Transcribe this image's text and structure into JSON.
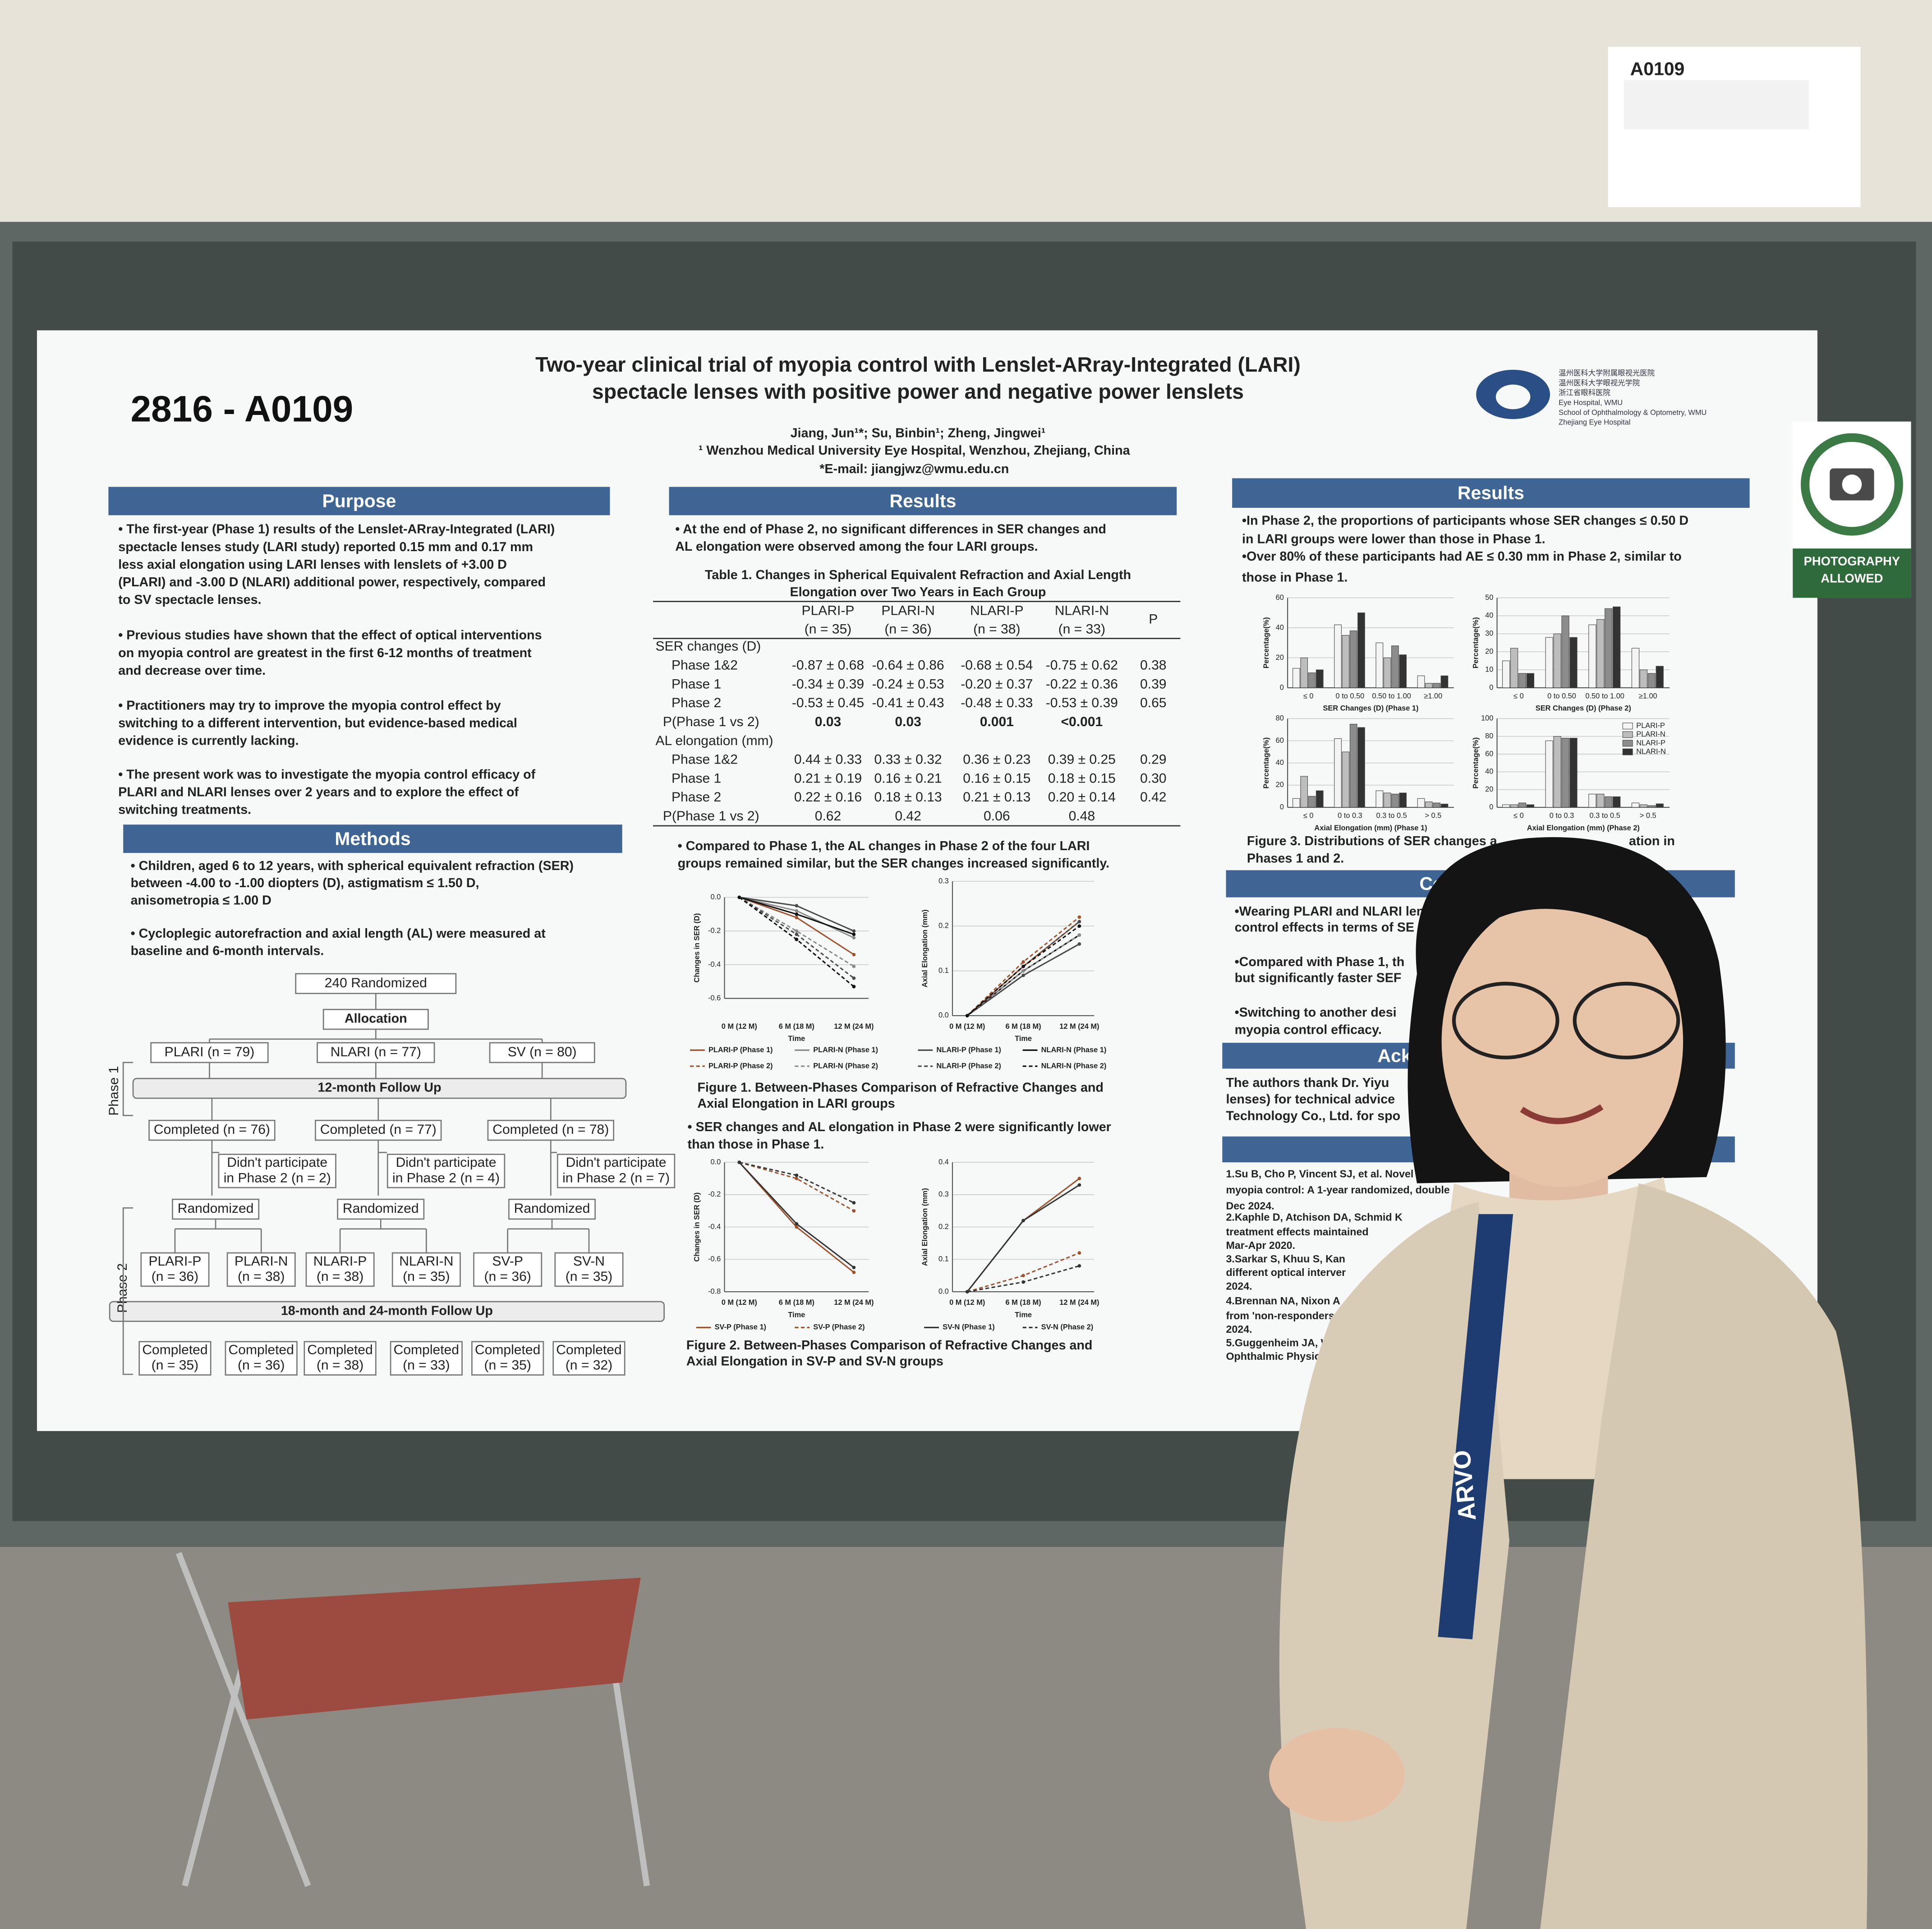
{
  "sign": {
    "code": "A0109"
  },
  "photo_sign": [
    "PHOTOGRAPHY",
    "ALLOWED"
  ],
  "poster": {
    "id": "2816 - A0109",
    "title": [
      "Two-year clinical trial of myopia control with Lenslet-ARray-Integrated (LARI)",
      "spectacle lenses with positive power and negative power lenslets"
    ],
    "authors": "Jiang, Jun¹*; Su, Binbin¹; Zheng, Jingwei¹",
    "affiliation": "¹ Wenzhou Medical University Eye Hospital, Wenzhou, Zhejiang, China",
    "email": "*E-mail: jiangjwz@wmu.edu.cn",
    "logo_text": [
      "温州医科大学附属眼视光医院",
      "温州医科大学眼视光学院",
      "浙江省眼科医院",
      "Eye Hospital, WMU",
      "School of Ophthalmology & Optometry, WMU",
      "Zhejiang Eye Hospital"
    ],
    "purpose": {
      "heading": "Purpose",
      "paragraphs": [
        [
          "• The first-year (Phase 1) results of the Lenslet-ARray-Integrated (LARI)",
          "spectacle lenses study (LARI study) reported 0.15 mm and 0.17 mm",
          "less axial elongation using LARI lenses with lenslets of +3.00 D",
          "(PLARI) and -3.00 D (NLARI) additional power, respectively, compared",
          "to SV spectacle lenses."
        ],
        [
          "• Previous studies have shown that the effect of optical interventions",
          "on myopia control are greatest in the first 6-12 months of treatment",
          "and decrease over time."
        ],
        [
          "• Practitioners may try to improve the myopia control effect by",
          "switching to a different intervention, but evidence-based medical",
          "evidence is currently lacking."
        ],
        [
          "• The present work was to investigate the myopia control efficacy of",
          "PLARI and NLARI lenses over 2 years and to explore the effect of",
          "switching treatments."
        ]
      ]
    },
    "methods": {
      "heading": "Methods",
      "paragraphs": [
        [
          "• Children, aged 6 to 12 years, with spherical equivalent refraction (SER)",
          "between -4.00 to -1.00 diopters (D), astigmatism ≤ 1.50 D,",
          "anisometropia ≤ 1.00 D"
        ],
        [
          "• Cycloplegic autorefraction and axial length (AL) were measured at",
          "baseline and 6-month intervals."
        ]
      ]
    },
    "flowchart": {
      "phases": [
        "Phase 1",
        "Phase 2"
      ],
      "nodes": [
        [
          "240 Randomized"
        ],
        [
          "Allocation"
        ],
        [
          "PLARI (n = 79)"
        ],
        [
          "NLARI (n = 77)"
        ],
        [
          "SV (n = 80)"
        ],
        [
          "12-month Follow Up"
        ],
        [
          "Completed (n = 76)"
        ],
        [
          "Completed (n = 77)"
        ],
        [
          "Completed (n = 78)"
        ],
        [
          "Didn't participate",
          "in Phase 2 (n = 2)"
        ],
        [
          "Didn't participate",
          "in Phase 2 (n = 4)"
        ],
        [
          "Didn't participate",
          "in Phase 2 (n = 7)"
        ],
        [
          "Randomized"
        ],
        [
          "Randomized"
        ],
        [
          "Randomized"
        ],
        [
          "PLARI-P",
          "(n = 36)"
        ],
        [
          "PLARI-N",
          "(n = 38)"
        ],
        [
          "NLARI-P",
          "(n = 38)"
        ],
        [
          "NLARI-N",
          "(n = 35)"
        ],
        [
          "SV-P",
          "(n = 36)"
        ],
        [
          "SV-N",
          "(n = 35)"
        ],
        [
          "18-month and 24-month Follow Up"
        ],
        [
          "Completed",
          "(n = 35)"
        ],
        [
          "Completed",
          "(n = 36)"
        ],
        [
          "Completed",
          "(n = 38)"
        ],
        [
          "Completed",
          "(n = 33)"
        ],
        [
          "Completed",
          "(n = 35)"
        ],
        [
          "Completed",
          "(n = 32)"
        ]
      ]
    },
    "results_mid": {
      "heading": "Results",
      "intro": [
        "• At the end of Phase 2, no significant differences in SER changes and",
        "AL elongation were observed among the four LARI groups."
      ],
      "table": {
        "caption": [
          "Table 1. Changes in Spherical Equivalent Refraction and Axial Length",
          "Elongation over Two Years in Each Group"
        ],
        "header": [
          [
            "PLARI-P",
            "(n = 35)"
          ],
          [
            "PLARI-N",
            "(n = 36)"
          ],
          [
            "NLARI-P",
            "(n = 38)"
          ],
          [
            "NLARI-N",
            "(n = 33)"
          ],
          [
            "P"
          ]
        ],
        "rows": [
          [
            "SER changes (D)"
          ],
          [
            "Phase 1&2",
            "-0.87 ± 0.68",
            "-0.64 ± 0.86",
            "-0.68 ± 0.54",
            "-0.75 ± 0.62",
            "0.38"
          ],
          [
            "Phase 1",
            "-0.34 ± 0.39",
            "-0.24 ± 0.53",
            "-0.20 ± 0.37",
            "-0.22 ± 0.36",
            "0.39"
          ],
          [
            "Phase 2",
            "-0.53 ± 0.45",
            "-0.41 ± 0.43",
            "-0.48 ± 0.33",
            "-0.53 ± 0.39",
            "0.65"
          ],
          [
            "P(Phase 1 vs 2)",
            "0.03",
            "0.03",
            "0.001",
            "<0.001"
          ],
          [
            "AL elongation (mm)"
          ],
          [
            "Phase 1&2",
            "0.44 ± 0.33",
            "0.33 ± 0.32",
            "0.36 ± 0.23",
            "0.39 ± 0.25",
            "0.29"
          ],
          [
            "Phase 1",
            "0.21 ± 0.19",
            "0.16 ± 0.21",
            "0.16 ± 0.15",
            "0.18 ± 0.15",
            "0.30"
          ],
          [
            "Phase 2",
            "0.22 ± 0.16",
            "0.18 ± 0.13",
            "0.21 ± 0.13",
            "0.20 ± 0.14",
            "0.42"
          ],
          [
            "P(Phase 1 vs 2)",
            "0.62",
            "0.42",
            "0.06",
            "0.48"
          ]
        ]
      },
      "note1": [
        "• Compared to Phase 1, the AL changes in Phase 2 of the four LARI",
        "groups remained similar, but the SER changes increased significantly."
      ],
      "figure1_caption": [
        "Figure 1. Between-Phases Comparison of Refractive Changes and",
        "Axial Elongation in LARI groups"
      ],
      "note2": [
        "• SER changes and AL elongation in Phase 2 were significantly lower",
        "than those in Phase 1."
      ],
      "figure2_caption": [
        "Figure 2. Between-Phases Comparison of Refractive Changes and",
        "Axial Elongation in SV-P and SV-N groups"
      ]
    },
    "results_right": {
      "heading": "Results",
      "bullets": [
        [
          "•In Phase 2, the proportions of participants whose SER changes ≤ 0.50 D",
          "in LARI groups were lower than those in Phase 1."
        ],
        [
          "•Over 80% of these participants had AE ≤ 0.30 mm in Phase 2, similar to",
          "those in Phase 1."
        ]
      ],
      "figure3_caption": [
        "Figure 3. Distributions of SER changes a",
        "ation in",
        "Phases 1 and 2."
      ]
    },
    "conclusions": {
      "heading": "Con",
      "lines": [
        "•Wearing PLARI and NLARI len",
        "control effects in terms of SE",
        "•Compared with Phase 1, th",
        "but significantly faster SEF",
        "•Switching to another desi",
        "myopia control efficacy."
      ]
    },
    "acknowledgements": {
      "heading": "Ack",
      "lines": [
        "The authors thank Dr. Yiyu",
        "lenses) for technical advice",
        "Technology Co., Ltd. for spo"
      ]
    },
    "references": {
      "heading": "Refe",
      "lines": [
        "1.Su B, Cho P, Vincent SJ, et al. Novel lensle",
        "myopia control: A 1-year randomized, double",
        "Dec 2024.",
        "2.Kaphle D, Atchison DA, Schmid K",
        "treatment effects maintained",
        "Mar-Apr 2020.",
        "3.Sarkar S, Khuu S, Kan",
        "different optical interver",
        "2024.",
        "4.Brennan NA, Nixon A",
        "from 'non-responders",
        "2024.",
        "5.Guggenheim JA, W",
        "Ophthalmic Physiol"
      ]
    }
  },
  "lanyard": "ARVO",
  "chart_data": [
    {
      "type": "line",
      "ylabel": "Changes in SER (D)",
      "xlabel": "Time",
      "categories": [
        "0 M (12 M)",
        "6 M (18 M)",
        "12 M (24 M)"
      ],
      "ylim": [
        -0.6,
        0
      ],
      "yticks": [
        -0.6,
        -0.4,
        -0.2,
        {
          "value": 0,
          "label": "0.0"
        }
      ],
      "series": [
        {
          "name": "PLARI-P (Phase 1)",
          "color": "#a0522d",
          "dashed": false,
          "values": [
            0,
            -0.12,
            -0.34
          ]
        },
        {
          "name": "PLARI-N (Phase 1)",
          "color": "#8a8a8a",
          "dashed": false,
          "values": [
            0,
            -0.08,
            -0.24
          ]
        },
        {
          "name": "NLARI-P (Phase 1)",
          "color": "#4a4a4a",
          "dashed": false,
          "values": [
            0,
            -0.05,
            -0.2
          ]
        },
        {
          "name": "NLARI-N (Phase 1)",
          "color": "#111111",
          "dashed": false,
          "values": [
            0,
            -0.1,
            -0.22
          ]
        },
        {
          "name": "PLARI-P (Phase 2)",
          "color": "#a0522d",
          "dashed": true,
          "values": [
            0,
            -0.25,
            -0.53
          ]
        },
        {
          "name": "PLARI-N (Phase 2)",
          "color": "#8a8a8a",
          "dashed": true,
          "values": [
            0,
            -0.2,
            -0.41
          ]
        },
        {
          "name": "NLARI-P (Phase 2)",
          "color": "#4a4a4a",
          "dashed": true,
          "values": [
            0,
            -0.22,
            -0.48
          ]
        },
        {
          "name": "NLARI-N (Phase 2)",
          "color": "#111111",
          "dashed": true,
          "values": [
            0,
            -0.25,
            -0.53
          ]
        }
      ]
    },
    {
      "type": "line",
      "ylabel": "Axial Elongation (mm)",
      "xlabel": "Time",
      "categories": [
        "0 M (12 M)",
        "6 M (18 M)",
        "12 M (24 M)"
      ],
      "ylim": [
        0,
        0.3
      ],
      "yticks": [
        {
          "value": 0,
          "label": "0.0"
        },
        0.1,
        0.2,
        0.3
      ],
      "series": [
        {
          "color": "#a0522d",
          "dashed": false,
          "values": [
            0,
            0.11,
            0.21
          ]
        },
        {
          "color": "#8a8a8a",
          "dashed": false,
          "values": [
            0,
            0.09,
            0.16
          ]
        },
        {
          "color": "#4a4a4a",
          "dashed": false,
          "values": [
            0,
            0.09,
            0.16
          ]
        },
        {
          "color": "#111111",
          "dashed": false,
          "values": [
            0,
            0.1,
            0.18
          ]
        },
        {
          "color": "#a0522d",
          "dashed": true,
          "values": [
            0,
            0.12,
            0.22
          ]
        },
        {
          "color": "#8a8a8a",
          "dashed": true,
          "values": [
            0,
            0.1,
            0.18
          ]
        },
        {
          "color": "#4a4a4a",
          "dashed": true,
          "values": [
            0,
            0.11,
            0.21
          ]
        },
        {
          "color": "#111111",
          "dashed": true,
          "values": [
            0,
            0.11,
            0.2
          ]
        }
      ]
    },
    {
      "type": "line",
      "ylabel": "Changes in SER (D)",
      "xlabel": "Time",
      "categories": [
        "0 M (12 M)",
        "6 M (18 M)",
        "12 M (24 M)"
      ],
      "ylim": [
        -0.8,
        0
      ],
      "yticks": [
        -0.8,
        -0.6,
        -0.4,
        -0.2,
        {
          "value": 0,
          "label": "0.0"
        }
      ],
      "series": [
        {
          "name": "SV-P (Phase 1)",
          "color": "#a0522d",
          "dashed": false,
          "values": [
            0,
            -0.4,
            -0.68
          ]
        },
        {
          "name": "SV-P (Phase 2)",
          "color": "#a0522d",
          "dashed": true,
          "values": [
            0,
            -0.1,
            -0.3
          ]
        },
        {
          "name": "SV-N (Phase 1)",
          "color": "#333333",
          "dashed": false,
          "values": [
            0,
            -0.38,
            -0.65
          ]
        },
        {
          "name": "SV-N (Phase 2)",
          "color": "#333333",
          "dashed": true,
          "values": [
            0,
            -0.08,
            -0.25
          ]
        }
      ]
    },
    {
      "type": "line",
      "ylabel": "Axial Elongation (mm)",
      "xlabel": "Time",
      "categories": [
        "0 M (12 M)",
        "6 M (18 M)",
        "12 M (24 M)"
      ],
      "ylim": [
        0,
        0.4
      ],
      "yticks": [
        {
          "value": 0,
          "label": "0.0"
        },
        0.1,
        0.2,
        0.3,
        0.4
      ],
      "series": [
        {
          "color": "#a0522d",
          "dashed": false,
          "values": [
            0,
            0.22,
            0.35
          ]
        },
        {
          "color": "#a0522d",
          "dashed": true,
          "values": [
            0,
            0.05,
            0.12
          ]
        },
        {
          "color": "#333333",
          "dashed": false,
          "values": [
            0,
            0.22,
            0.33
          ]
        },
        {
          "color": "#333333",
          "dashed": true,
          "values": [
            0,
            0.03,
            0.08
          ]
        }
      ]
    },
    {
      "type": "bar",
      "ylabel": "Percentage(%)",
      "xlabel": "SER Changes (D) (Phase 1)",
      "categories": [
        "≤ 0",
        "0 to 0.50",
        "0.50 to 1.00",
        "≥1.00"
      ],
      "ylim": [
        0,
        60
      ],
      "yticks": [
        0,
        20,
        40,
        60
      ],
      "series": [
        {
          "color": "#f4f4f4",
          "values": [
            13,
            42,
            30,
            8
          ]
        },
        {
          "color": "#bdbdbd",
          "values": [
            20,
            35,
            20,
            3
          ]
        },
        {
          "color": "#8c8c8c",
          "values": [
            10,
            38,
            28,
            3
          ]
        },
        {
          "color": "#333333",
          "values": [
            12,
            50,
            22,
            8
          ]
        }
      ]
    },
    {
      "type": "bar",
      "ylabel": "Percentage(%)",
      "xlabel": "SER Changes (D) (Phase 2)",
      "categories": [
        "≤ 0",
        "0 to 0.50",
        "0.50 to 1.00",
        "≥1.00"
      ],
      "ylim": [
        0,
        50
      ],
      "yticks": [
        0,
        10,
        20,
        30,
        40,
        50
      ],
      "series": [
        {
          "color": "#f4f4f4",
          "values": [
            15,
            28,
            35,
            22
          ]
        },
        {
          "color": "#bdbdbd",
          "values": [
            22,
            30,
            38,
            10
          ]
        },
        {
          "color": "#8c8c8c",
          "values": [
            8,
            40,
            44,
            8
          ]
        },
        {
          "color": "#333333",
          "values": [
            8,
            28,
            45,
            12
          ]
        }
      ]
    },
    {
      "type": "bar",
      "ylabel": "Percentage(%)",
      "xlabel": "Axial Elongation (mm) (Phase 1)",
      "categories": [
        "≤ 0",
        "0 to 0.3",
        "0.3 to 0.5",
        "> 0.5"
      ],
      "ylim": [
        0,
        80
      ],
      "yticks": [
        0,
        20,
        40,
        60,
        80
      ],
      "series": [
        {
          "color": "#f4f4f4",
          "values": [
            8,
            62,
            15,
            8
          ]
        },
        {
          "color": "#bdbdbd",
          "values": [
            28,
            50,
            13,
            5
          ]
        },
        {
          "color": "#8c8c8c",
          "values": [
            10,
            75,
            12,
            4
          ]
        },
        {
          "color": "#333333",
          "values": [
            15,
            72,
            13,
            3
          ]
        }
      ]
    },
    {
      "type": "bar",
      "ylabel": "Percentage(%)",
      "xlabel": "Axial Elongation (mm) (Phase 2)",
      "categories": [
        "≤ 0",
        "0 to 0.3",
        "0.3 to 0.5",
        "> 0.5"
      ],
      "ylim": [
        0,
        100
      ],
      "yticks": [
        0,
        20,
        40,
        60,
        80,
        100
      ],
      "legend": "upper right",
      "series": [
        {
          "name": "PLARI-P",
          "color": "#f4f4f4",
          "values": [
            3,
            75,
            15,
            5
          ]
        },
        {
          "name": "PLARI-N",
          "color": "#bdbdbd",
          "values": [
            3,
            80,
            15,
            3
          ]
        },
        {
          "name": "NLARI-P",
          "color": "#8c8c8c",
          "values": [
            5,
            78,
            12,
            2
          ]
        },
        {
          "name": "NLARI-N",
          "color": "#333333",
          "values": [
            3,
            78,
            12,
            4
          ]
        }
      ]
    }
  ]
}
